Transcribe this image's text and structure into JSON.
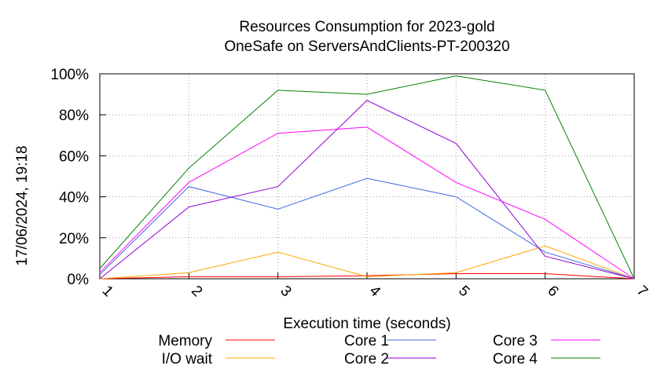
{
  "chart_data": {
    "type": "line",
    "title": "Resources Consumption for 2023-gold",
    "subtitle": "OneSafe on ServersAndClients-PT-200320",
    "xlabel": "Execution time (seconds)",
    "ylabel": "",
    "timestamp": "17/06/2024, 19:18",
    "x": [
      1,
      2,
      3,
      4,
      5,
      6,
      7
    ],
    "xlim": [
      1,
      7
    ],
    "ylim": [
      0,
      100
    ],
    "x_ticks": [
      "1",
      "2",
      "3",
      "4",
      "5",
      "6",
      "7"
    ],
    "y_ticks": [
      {
        "value": 0,
        "label": "0%"
      },
      {
        "value": 20,
        "label": "20%"
      },
      {
        "value": 40,
        "label": "40%"
      },
      {
        "value": 60,
        "label": "60%"
      },
      {
        "value": 80,
        "label": "80%"
      },
      {
        "value": 100,
        "label": "100%"
      }
    ],
    "grid": true,
    "legend_position": "bottom",
    "series": [
      {
        "name": "Memory",
        "color": "#ff0000",
        "values": [
          0,
          1,
          1,
          1.5,
          2.5,
          2.5,
          0
        ]
      },
      {
        "name": "I/O wait",
        "color": "#ffa500",
        "values": [
          0,
          3,
          13,
          1,
          3,
          16,
          0
        ]
      },
      {
        "name": "Core 1",
        "color": "#4169e1",
        "values": [
          2,
          45,
          34,
          49,
          40,
          13,
          0
        ]
      },
      {
        "name": "Core 2",
        "color": "#9400d3",
        "values": [
          0,
          35,
          45,
          87,
          66,
          11,
          0
        ]
      },
      {
        "name": "Core 3",
        "color": "#ff00ff",
        "values": [
          3,
          47,
          71,
          74,
          47,
          29,
          0
        ]
      },
      {
        "name": "Core 4",
        "color": "#008000",
        "values": [
          5,
          54,
          92,
          90,
          99,
          92,
          0
        ]
      }
    ]
  }
}
